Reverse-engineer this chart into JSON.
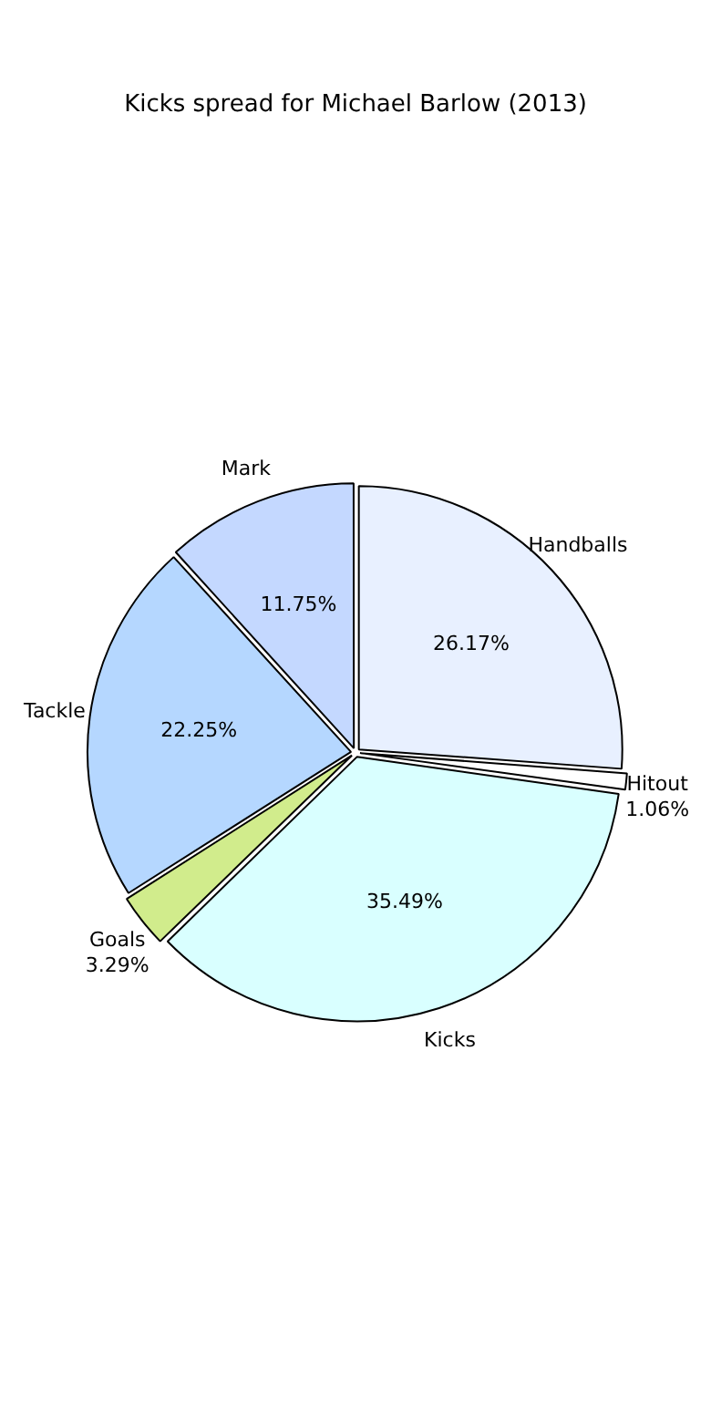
{
  "chart_data": {
    "type": "pie",
    "title": "Kicks spread for Michael Barlow (2013)",
    "categories": [
      "Handballs",
      "Hitout",
      "Kicks",
      "Goals",
      "Tackle",
      "Mark"
    ],
    "values": [
      26.17,
      1.06,
      35.49,
      3.29,
      22.25,
      11.75
    ],
    "colors": [
      "#e8f0ff",
      "#ffffff",
      "#d9ffff",
      "#d1ec8c",
      "#b5d7ff",
      "#c4d8ff"
    ],
    "value_labels": [
      "26.17%",
      "1.06%",
      "35.49%",
      "3.29%",
      "22.25%",
      "11.75%"
    ],
    "legend": false
  }
}
